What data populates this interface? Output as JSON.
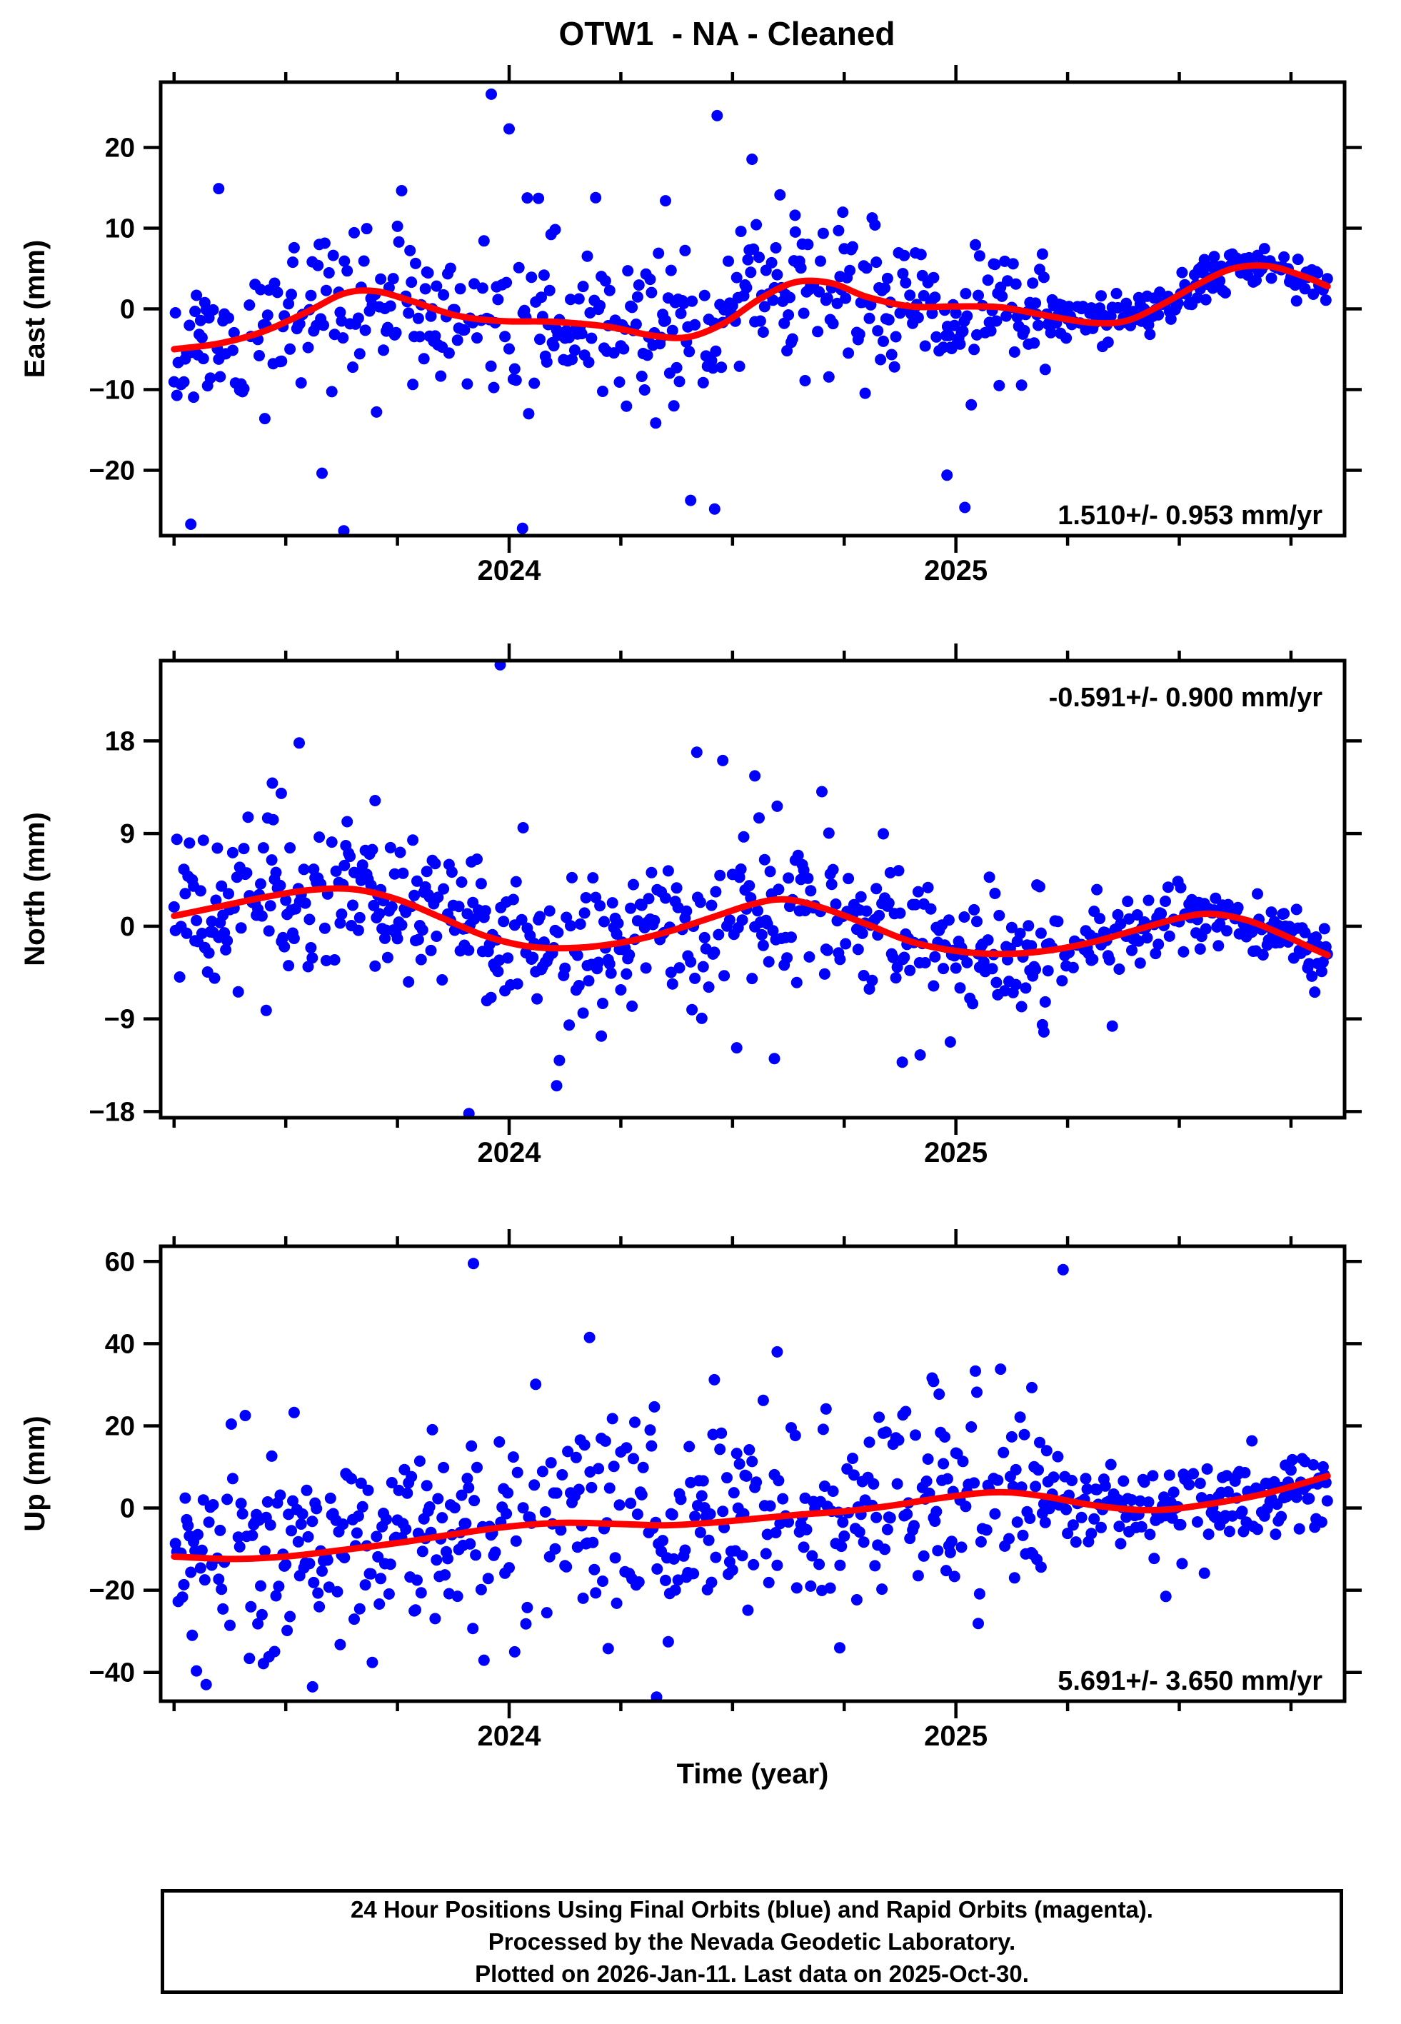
{
  "page": {
    "title": "OTW1  - NA - Cleaned"
  },
  "figure": {
    "x_axis_label": "Time (year)",
    "caption": {
      "lines": [
        "24 Hour Positions Using Final Orbits (blue) and Rapid Orbits (magenta).",
        "Processed by the Nevada Geodetic Laboratory.",
        "Plotted on 2026-Jan-11. Last data on 2025-Oct-30."
      ]
    }
  },
  "colors": {
    "points": "#0000ff",
    "trend": "#ff0000",
    "frame": "#000000"
  },
  "chart_data": {
    "type": "scatter",
    "title": "OTW1  - NA - Cleaned",
    "xlabel": "Time (year)",
    "x_axis": {
      "range": [
        2023.22,
        2025.87
      ],
      "major_ticks": [
        2024,
        2025
      ],
      "major_tick_labels": [
        "2024",
        "2025"
      ],
      "minor_interval": 0.25
    },
    "data_range": [
      2023.25,
      2025.832
    ],
    "panels": [
      {
        "component": "East",
        "ylabel": "East (mm)",
        "rate_label": "1.510+/- 0.953 mm/yr",
        "annotation_corner": "bottom-right",
        "y_axis": {
          "range": [
            -28.1,
            28.1
          ],
          "ticks": [
            20,
            10,
            0,
            -10,
            -20
          ]
        },
        "trend": [
          [
            2023.25,
            -5.0
          ],
          [
            2023.35,
            -4.3
          ],
          [
            2023.45,
            -2.8
          ],
          [
            2023.55,
            -0.3
          ],
          [
            2023.63,
            1.9
          ],
          [
            2023.7,
            2.2
          ],
          [
            2023.78,
            1.0
          ],
          [
            2023.88,
            -0.8
          ],
          [
            2023.98,
            -1.5
          ],
          [
            2024.1,
            -1.6
          ],
          [
            2024.22,
            -2.2
          ],
          [
            2024.32,
            -3.3
          ],
          [
            2024.4,
            -3.5
          ],
          [
            2024.48,
            -1.8
          ],
          [
            2024.56,
            1.2
          ],
          [
            2024.64,
            3.3
          ],
          [
            2024.72,
            3.2
          ],
          [
            2024.8,
            1.5
          ],
          [
            2024.9,
            0.3
          ],
          [
            2025.0,
            0.3
          ],
          [
            2025.1,
            0.2
          ],
          [
            2025.2,
            -0.8
          ],
          [
            2025.3,
            -1.7
          ],
          [
            2025.38,
            -1.5
          ],
          [
            2025.46,
            0.5
          ],
          [
            2025.54,
            3.0
          ],
          [
            2025.62,
            5.0
          ],
          [
            2025.7,
            5.3
          ],
          [
            2025.78,
            4.0
          ],
          [
            2025.832,
            2.8
          ]
        ],
        "scatter_model": {
          "seed": 11,
          "points_per_year": 320,
          "gap_p": 0.2,
          "eras": [
            {
              "until": 2025.2,
              "sigma": 4.6,
              "outlier_p": 0.028,
              "outlier_min": 8,
              "outlier_max": 22
            },
            {
              "until": 2025.87,
              "sigma": 1.3,
              "outlier_p": 0.004,
              "outlier_min": 3,
              "outlier_max": 6
            }
          ]
        },
        "fixed_outliers": [
          [
            2023.35,
            14.9
          ],
          [
            2023.96,
            26.6
          ],
          [
            2024.0,
            22.3
          ],
          [
            2023.63,
            -27.5
          ],
          [
            2024.03,
            -27.2
          ],
          [
            2024.46,
            -24.8
          ],
          [
            2025.02,
            -24.6
          ],
          [
            2024.64,
            11.6
          ],
          [
            2024.35,
            13.4
          ],
          [
            2024.98,
            -20.6
          ]
        ]
      },
      {
        "component": "North",
        "ylabel": "North (mm)",
        "rate_label": "-0.591+/- 0.900 mm/yr",
        "annotation_corner": "top-right",
        "y_axis": {
          "range": [
            -18.6,
            25.8
          ],
          "ticks": [
            18,
            9,
            0,
            -9,
            -18
          ]
        },
        "trend": [
          [
            2023.25,
            1.0
          ],
          [
            2023.35,
            1.9
          ],
          [
            2023.45,
            2.8
          ],
          [
            2023.55,
            3.5
          ],
          [
            2023.65,
            3.6
          ],
          [
            2023.75,
            2.6
          ],
          [
            2023.85,
            0.8
          ],
          [
            2023.95,
            -1.0
          ],
          [
            2024.05,
            -2.0
          ],
          [
            2024.15,
            -2.1
          ],
          [
            2024.25,
            -1.6
          ],
          [
            2024.35,
            -0.6
          ],
          [
            2024.45,
            0.8
          ],
          [
            2024.55,
            2.2
          ],
          [
            2024.62,
            2.6
          ],
          [
            2024.7,
            1.8
          ],
          [
            2024.8,
            0.2
          ],
          [
            2024.9,
            -1.5
          ],
          [
            2025.0,
            -2.4
          ],
          [
            2025.1,
            -2.7
          ],
          [
            2025.2,
            -2.4
          ],
          [
            2025.3,
            -1.6
          ],
          [
            2025.4,
            -0.4
          ],
          [
            2025.5,
            0.8
          ],
          [
            2025.57,
            1.2
          ],
          [
            2025.65,
            0.6
          ],
          [
            2025.72,
            -0.6
          ],
          [
            2025.8,
            -2.2
          ],
          [
            2025.832,
            -2.8
          ]
        ],
        "scatter_model": {
          "seed": 22,
          "points_per_year": 320,
          "gap_p": 0.2,
          "eras": [
            {
              "until": 2025.2,
              "sigma": 3.3,
              "outlier_p": 0.025,
              "outlier_min": 6,
              "outlier_max": 15
            },
            {
              "until": 2025.87,
              "sigma": 1.6,
              "outlier_p": 0.006,
              "outlier_min": 3,
              "outlier_max": 6
            }
          ]
        },
        "fixed_outliers": [
          [
            2023.53,
            17.8
          ],
          [
            2023.98,
            25.4
          ],
          [
            2023.91,
            -18.2
          ],
          [
            2023.47,
            13.9
          ],
          [
            2023.49,
            12.9
          ],
          [
            2024.42,
            16.9
          ],
          [
            2024.55,
            14.6
          ],
          [
            2025.35,
            -9.7
          ],
          [
            2024.88,
            -13.2
          ],
          [
            2024.92,
            -12.5
          ],
          [
            2023.7,
            12.2
          ]
        ]
      },
      {
        "component": "Up",
        "ylabel": "Up (mm)",
        "rate_label": "5.691+/- 3.650 mm/yr",
        "annotation_corner": "bottom-right",
        "y_axis": {
          "range": [
            -47.0,
            63.7
          ],
          "ticks": [
            60,
            40,
            20,
            0,
            -20,
            -40
          ]
        },
        "trend": [
          [
            2023.25,
            -11.8
          ],
          [
            2023.38,
            -12.4
          ],
          [
            2023.5,
            -11.8
          ],
          [
            2023.62,
            -10.3
          ],
          [
            2023.75,
            -8.5
          ],
          [
            2023.88,
            -6.3
          ],
          [
            2024.0,
            -4.5
          ],
          [
            2024.12,
            -3.6
          ],
          [
            2024.25,
            -3.9
          ],
          [
            2024.35,
            -4.2
          ],
          [
            2024.45,
            -3.6
          ],
          [
            2024.55,
            -2.6
          ],
          [
            2024.65,
            -1.6
          ],
          [
            2024.75,
            -0.8
          ],
          [
            2024.85,
            0.5
          ],
          [
            2024.95,
            2.2
          ],
          [
            2025.05,
            3.6
          ],
          [
            2025.12,
            3.8
          ],
          [
            2025.2,
            2.8
          ],
          [
            2025.3,
            0.8
          ],
          [
            2025.4,
            -0.4
          ],
          [
            2025.48,
            -0.3
          ],
          [
            2025.58,
            1.2
          ],
          [
            2025.68,
            3.2
          ],
          [
            2025.76,
            5.5
          ],
          [
            2025.832,
            7.8
          ]
        ],
        "scatter_model": {
          "seed": 33,
          "points_per_year": 320,
          "gap_p": 0.2,
          "eras": [
            {
              "until": 2025.2,
              "sigma": 12.5,
              "outlier_p": 0.02,
              "outlier_min": 20,
              "outlier_max": 42
            },
            {
              "until": 2025.87,
              "sigma": 5.0,
              "outlier_p": 0.008,
              "outlier_min": 10,
              "outlier_max": 18
            }
          ]
        },
        "fixed_outliers": [
          [
            2023.92,
            59.5
          ],
          [
            2025.24,
            58.0
          ],
          [
            2024.95,
            30.8
          ],
          [
            2025.17,
            29.3
          ],
          [
            2023.56,
            -43.5
          ],
          [
            2024.33,
            -46.0
          ],
          [
            2024.74,
            -34.0
          ],
          [
            2025.47,
            -21.5
          ],
          [
            2024.18,
            41.5
          ],
          [
            2024.6,
            38.0
          ]
        ]
      }
    ]
  }
}
